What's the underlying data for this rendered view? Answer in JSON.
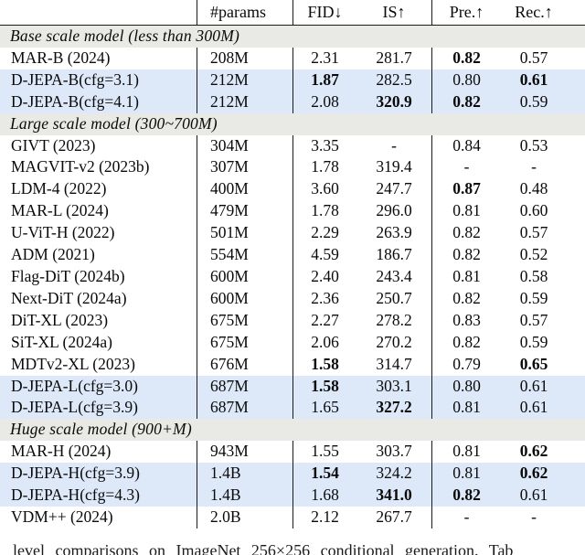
{
  "table": {
    "headers": {
      "name": "",
      "params": "#params",
      "fid": "FID↓",
      "is": "IS↑",
      "pre": "Pre.↑",
      "rec": "Rec.↑"
    },
    "colors": {
      "section_bg": "#e9e9e6",
      "highlight_bg": "#dde8f8",
      "rule": "#1a1a1a",
      "text": "#0a0a0a"
    },
    "rows": [
      {
        "type": "section",
        "label": "Base scale model (less than 300M)"
      },
      {
        "type": "model",
        "name": "MAR-B (2024)",
        "params": "208M",
        "fid": "2.31",
        "is": "281.7",
        "pre": "0.82",
        "rec": "0.57",
        "bold": [
          "pre"
        ],
        "highlight": false
      },
      {
        "type": "model",
        "name": "D-JEPA-B(cfg=3.1)",
        "params": "212M",
        "fid": "1.87",
        "is": "282.5",
        "pre": "0.80",
        "rec": "0.61",
        "bold": [
          "fid",
          "rec"
        ],
        "highlight": true
      },
      {
        "type": "model",
        "name": "D-JEPA-B(cfg=4.1)",
        "params": "212M",
        "fid": "2.08",
        "is": "320.9",
        "pre": "0.82",
        "rec": "0.59",
        "bold": [
          "is",
          "pre"
        ],
        "highlight": true
      },
      {
        "type": "section",
        "label": "Large scale model (300~700M)"
      },
      {
        "type": "model",
        "name": "GIVT (2023)",
        "params": "304M",
        "fid": "3.35",
        "is": "-",
        "pre": "0.84",
        "rec": "0.53",
        "bold": [],
        "highlight": false
      },
      {
        "type": "model",
        "name": "MAGVIT-v2 (2023b)",
        "params": "307M",
        "fid": "1.78",
        "is": "319.4",
        "pre": "-",
        "rec": "-",
        "bold": [],
        "highlight": false
      },
      {
        "type": "model",
        "name": "LDM-4 (2022)",
        "params": "400M",
        "fid": "3.60",
        "is": "247.7",
        "pre": "0.87",
        "rec": "0.48",
        "bold": [
          "pre"
        ],
        "highlight": false
      },
      {
        "type": "model",
        "name": "MAR-L (2024)",
        "params": "479M",
        "fid": "1.78",
        "is": "296.0",
        "pre": "0.81",
        "rec": "0.60",
        "bold": [],
        "highlight": false
      },
      {
        "type": "model",
        "name": "U-ViT-H (2022)",
        "params": "501M",
        "fid": "2.29",
        "is": "263.9",
        "pre": "0.82",
        "rec": "0.57",
        "bold": [],
        "highlight": false
      },
      {
        "type": "model",
        "name": "ADM (2021)",
        "params": "554M",
        "fid": "4.59",
        "is": "186.7",
        "pre": "0.82",
        "rec": "0.52",
        "bold": [],
        "highlight": false
      },
      {
        "type": "model",
        "name": "Flag-DiT (2024b)",
        "params": "600M",
        "fid": "2.40",
        "is": "243.4",
        "pre": "0.81",
        "rec": "0.58",
        "bold": [],
        "highlight": false
      },
      {
        "type": "model",
        "name": "Next-DiT (2024a)",
        "params": "600M",
        "fid": "2.36",
        "is": "250.7",
        "pre": "0.82",
        "rec": "0.59",
        "bold": [],
        "highlight": false
      },
      {
        "type": "model",
        "name": "DiT-XL (2023)",
        "params": "675M",
        "fid": "2.27",
        "is": "278.2",
        "pre": "0.83",
        "rec": "0.57",
        "bold": [],
        "highlight": false
      },
      {
        "type": "model",
        "name": "SiT-XL (2024a)",
        "params": "675M",
        "fid": "2.06",
        "is": "270.2",
        "pre": "0.82",
        "rec": "0.59",
        "bold": [],
        "highlight": false
      },
      {
        "type": "model",
        "name": "MDTv2-XL (2023)",
        "params": "676M",
        "fid": "1.58",
        "is": "314.7",
        "pre": "0.79",
        "rec": "0.65",
        "bold": [
          "fid",
          "rec"
        ],
        "highlight": false
      },
      {
        "type": "model",
        "name": "D-JEPA-L(cfg=3.0)",
        "params": "687M",
        "fid": "1.58",
        "is": "303.1",
        "pre": "0.80",
        "rec": "0.61",
        "bold": [
          "fid"
        ],
        "highlight": true
      },
      {
        "type": "model",
        "name": "D-JEPA-L(cfg=3.9)",
        "params": "687M",
        "fid": "1.65",
        "is": "327.2",
        "pre": "0.81",
        "rec": "0.61",
        "bold": [
          "is"
        ],
        "highlight": true
      },
      {
        "type": "section",
        "label": "Huge scale model (900+M)"
      },
      {
        "type": "model",
        "name": "MAR-H (2024)",
        "params": "943M",
        "fid": "1.55",
        "is": "303.7",
        "pre": "0.81",
        "rec": "0.62",
        "bold": [
          "rec"
        ],
        "highlight": false
      },
      {
        "type": "model",
        "name": "D-JEPA-H(cfg=3.9)",
        "params": "1.4B",
        "fid": "1.54",
        "is": "324.2",
        "pre": "0.81",
        "rec": "0.62",
        "bold": [
          "fid",
          "rec"
        ],
        "highlight": true
      },
      {
        "type": "model",
        "name": "D-JEPA-H(cfg=4.3)",
        "params": "1.4B",
        "fid": "1.68",
        "is": "341.0",
        "pre": "0.82",
        "rec": "0.61",
        "bold": [
          "is",
          "pre"
        ],
        "highlight": true
      },
      {
        "type": "model",
        "name": "VDM++ (2024)",
        "params": "2.0B",
        "fid": "2.12",
        "is": "267.7",
        "pre": "-",
        "rec": "-",
        "bold": [],
        "highlight": false
      }
    ]
  },
  "caption": {
    "text": "level comparisons on ImageNet 256×256 conditional generation. Tab"
  }
}
